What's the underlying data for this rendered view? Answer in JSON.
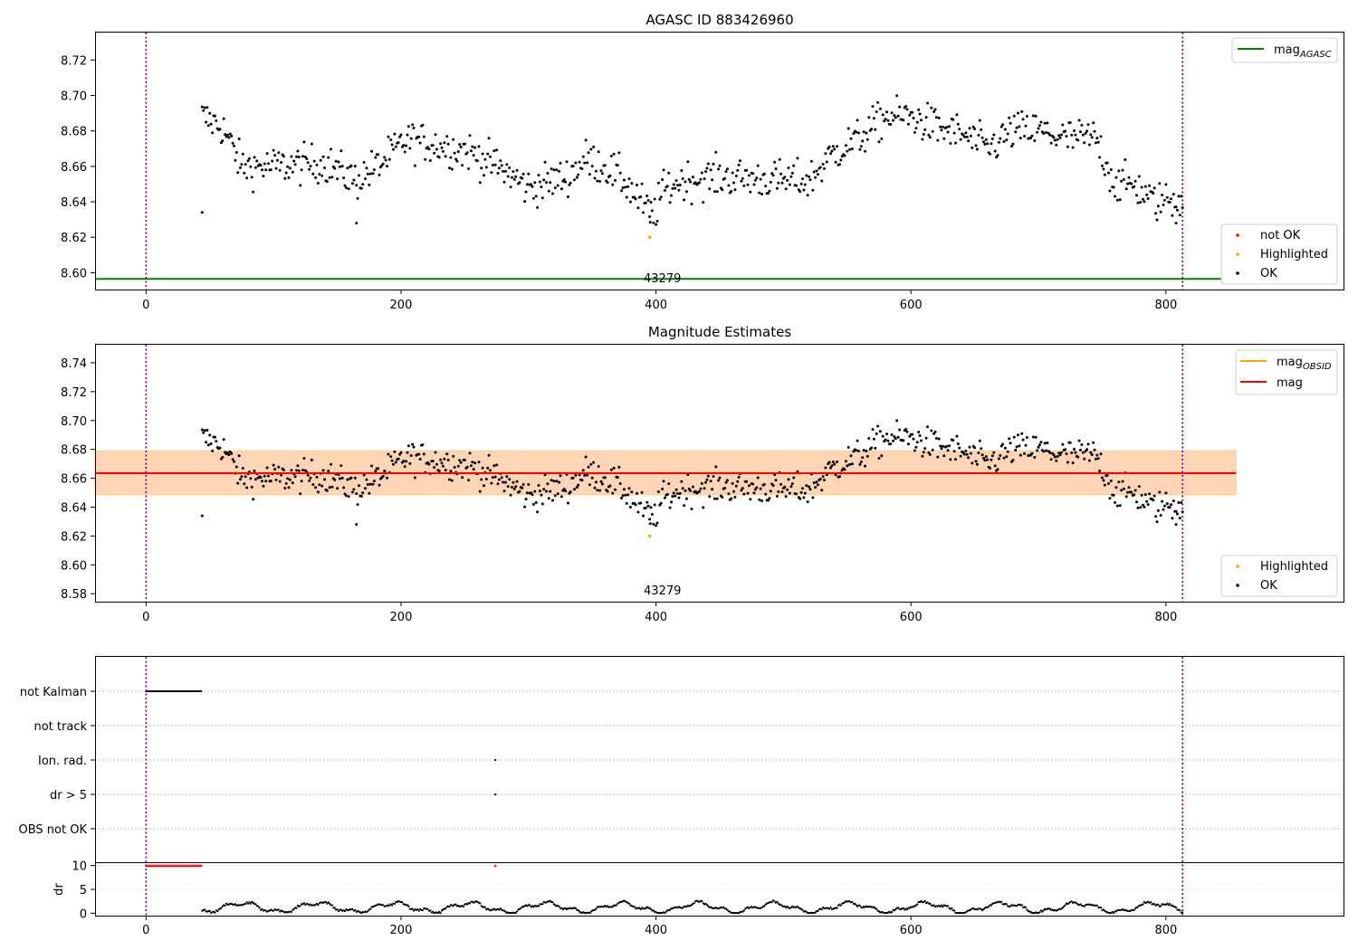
{
  "chart_data": [
    {
      "type": "scatter",
      "title": "AGASC ID 883426960",
      "xlim": [
        -40,
        940
      ],
      "ylim": [
        8.5905,
        8.7355
      ],
      "xticks": [
        0,
        200,
        400,
        600,
        800
      ],
      "yticks": [
        8.6,
        8.62,
        8.64,
        8.66,
        8.68,
        8.7,
        8.72
      ],
      "ytick_decimals": 2,
      "vlines": [
        0,
        813
      ],
      "hline": {
        "y": 8.5965,
        "color": "#008000",
        "x0": -40,
        "x1": 855
      },
      "annotation": {
        "text": "43279",
        "x": 393,
        "y": 8.5935
      },
      "highlighted_point": {
        "x": 395,
        "y": 8.62
      },
      "legend_top": [
        {
          "label": "mag",
          "sub": "AGASC",
          "color": "#008000",
          "kind": "line"
        }
      ],
      "legend_bottom": [
        {
          "label": "not OK",
          "color": "#ff0000",
          "kind": "dot"
        },
        {
          "label": "Highlighted",
          "color": "#ffa500",
          "kind": "dot"
        },
        {
          "label": "OK",
          "color": "#000000",
          "kind": "dot"
        }
      ]
    },
    {
      "type": "scatter",
      "title": "Magnitude Estimates",
      "xlim": [
        -40,
        940
      ],
      "ylim": [
        8.5745,
        8.7525
      ],
      "xticks": [
        0,
        200,
        400,
        600,
        800
      ],
      "yticks": [
        8.58,
        8.6,
        8.62,
        8.64,
        8.66,
        8.68,
        8.7,
        8.72,
        8.74
      ],
      "ytick_decimals": 2,
      "vlines": [
        0,
        813
      ],
      "mag_line": {
        "y": 8.6635,
        "color": "#ff0000",
        "x0": -40,
        "x1": 855
      },
      "band_red": {
        "y0": 8.6485,
        "y1": 8.679,
        "x0": -40,
        "x1": 855,
        "color": "#ffc0cb"
      },
      "band_orange": {
        "y0": 8.6485,
        "y1": 8.679,
        "x0": -40,
        "x1": 855,
        "color": "#ffa500"
      },
      "annotation": {
        "text": "43279",
        "x": 393,
        "y": 8.5785
      },
      "highlighted_point": {
        "x": 395,
        "y": 8.62
      },
      "legend_top": [
        {
          "label": "mag",
          "sub": "OBSID",
          "color": "#ffa500",
          "kind": "line"
        },
        {
          "label": "mag",
          "sub": "",
          "color": "#ff0000",
          "kind": "line"
        }
      ],
      "legend_bottom": [
        {
          "label": "Highlighted",
          "color": "#ffa500",
          "kind": "dot"
        },
        {
          "label": "OK",
          "color": "#000000",
          "kind": "dot"
        }
      ]
    },
    {
      "type": "scatter",
      "title": "",
      "xlim": [
        -40,
        940
      ],
      "categories": [
        "not Kalman",
        "not track",
        "Ion. rad.",
        "dr > 5",
        "OBS not OK"
      ],
      "flag_points": {
        "not Kalman": {
          "x0": 0,
          "x1": 44,
          "step": 1.2
        },
        "not track": {
          "x0": null,
          "x1": null
        },
        "Ion. rad.": {
          "x": [
            274
          ]
        },
        "dr > 5": {
          "x": [
            274
          ]
        },
        "OBS not OK": {
          "x0": null,
          "x1": null
        }
      },
      "vlines": [
        0,
        813
      ],
      "dr_panel": {
        "ylabel": "dr",
        "ylim": [
          -0.5,
          10.5
        ],
        "yticks": [
          0,
          5,
          10
        ],
        "clipped_red_x0": 0,
        "clipped_red_x1": 44,
        "clipped_red_extra": [
          274
        ],
        "x_range": [
          44,
          813
        ]
      },
      "xticks": [
        0,
        200,
        400,
        600,
        800
      ]
    }
  ]
}
